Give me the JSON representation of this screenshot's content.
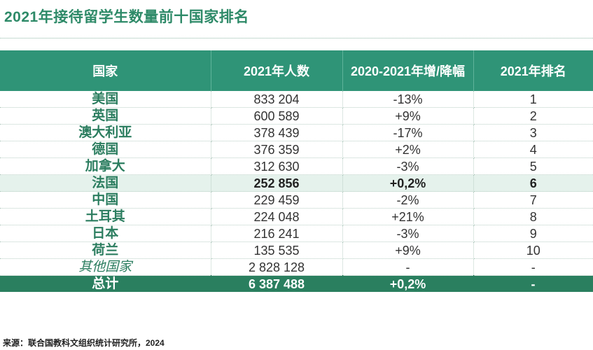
{
  "title": "2021年接待留学生数量前十国家排名",
  "headers": [
    "国家",
    "2021年人数",
    "2020-2021年增/降幅",
    "2021年排名"
  ],
  "rows": [
    {
      "country": "美国",
      "count": "833 204",
      "change": "-13%",
      "rank": "1"
    },
    {
      "country": "英国",
      "count": "600 589",
      "change": "+9%",
      "rank": "2"
    },
    {
      "country": "澳大利亚",
      "count": "378 439",
      "change": "-17%",
      "rank": "3"
    },
    {
      "country": "德国",
      "count": "376 359",
      "change": "+2%",
      "rank": "4"
    },
    {
      "country": "加拿大",
      "count": "312 630",
      "change": "-3%",
      "rank": "5"
    },
    {
      "country": "法国",
      "count": "252 856",
      "change": "+0,2%",
      "rank": "6"
    },
    {
      "country": "中国",
      "count": "229 459",
      "change": "-2%",
      "rank": "7"
    },
    {
      "country": "土耳其",
      "count": "224 048",
      "change": "+21%",
      "rank": "8"
    },
    {
      "country": "日本",
      "count": "216 241",
      "change": "-3%",
      "rank": "9"
    },
    {
      "country": "荷兰",
      "count": "135 535",
      "change": "+9%",
      "rank": "10"
    },
    {
      "country": "其他国家",
      "count": "2 828 128",
      "change": "-",
      "rank": "-"
    }
  ],
  "total": {
    "country": "总计",
    "count": "6 387 488",
    "change": "+0,2%",
    "rank": "-"
  },
  "source": "来源：联合国教科文组织统计研究所，2024",
  "colors": {
    "header_bg": "#2f9477",
    "highlight_bg": "#e5f2ec",
    "total_bg": "#2a7f5f",
    "title": "#2e8a68"
  }
}
